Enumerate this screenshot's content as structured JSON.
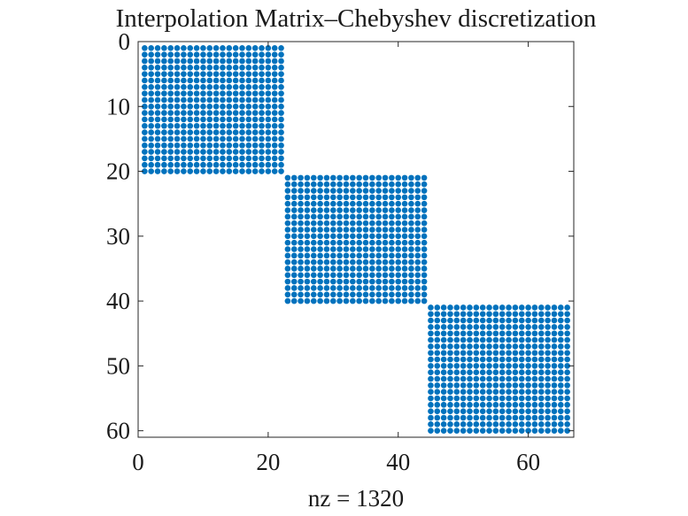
{
  "chart_data": {
    "type": "scatter",
    "subtype": "sparsity-pattern",
    "title": "Interpolation Matrix–Chebyshev discretization",
    "xlabel": "nz = 1320",
    "ylabel": "",
    "xlim": [
      0,
      67
    ],
    "ylim": [
      61,
      0
    ],
    "y_axis_reversed": true,
    "x_ticks": [
      0,
      20,
      40,
      60
    ],
    "y_ticks": [
      0,
      10,
      20,
      30,
      40,
      50,
      60
    ],
    "marker_color": "#0072BD",
    "grid": false,
    "blocks": [
      {
        "rows": [
          1,
          20
        ],
        "cols": [
          1,
          22
        ]
      },
      {
        "rows": [
          21,
          40
        ],
        "cols": [
          23,
          44
        ]
      },
      {
        "rows": [
          41,
          60
        ],
        "cols": [
          45,
          66
        ]
      }
    ]
  }
}
